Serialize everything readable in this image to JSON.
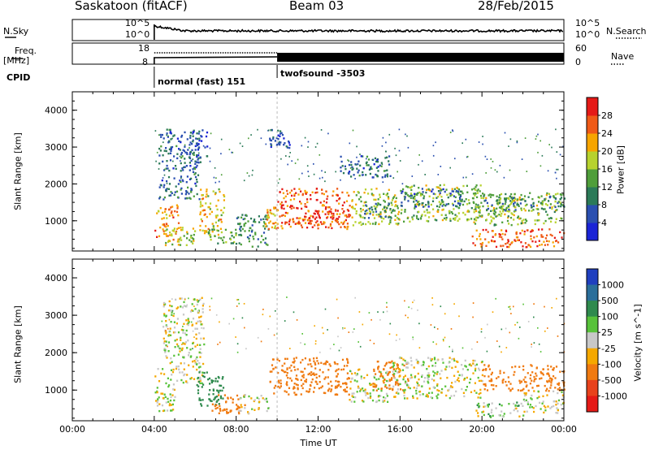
{
  "header": {
    "station": "Saskatoon (fitACF)",
    "beam": "Beam 03",
    "date": "28/Feb/2015"
  },
  "strip_labels": {
    "nsky": "N.Sky",
    "nsky_ticks": [
      "10^5",
      "10^0"
    ],
    "nsearch": "N.Search",
    "nsearch_ticks": [
      "10^5",
      "10^0"
    ],
    "freq": "Freq.",
    "freq_unit": "[MHz]",
    "freq_ticks": [
      "18",
      "8"
    ],
    "nave": "Nave",
    "nave_ticks": [
      "60",
      "0"
    ],
    "cpid": "CPID",
    "cpid_modes": [
      "normal (fast) 151",
      "twofsound -3503"
    ]
  },
  "chart_data": [
    {
      "type": "heatmap",
      "title": "",
      "ylabel": "Slant Range [km]",
      "xlabel": "",
      "x_range_hours": [
        0,
        24
      ],
      "ylim": [
        180,
        4500
      ],
      "yticks": [
        1000,
        2000,
        3000,
        4000
      ],
      "colorbar": {
        "label": "Power [dB]",
        "ticks": [
          4,
          8,
          12,
          16,
          20,
          24,
          28
        ],
        "range": [
          0,
          30
        ],
        "colors": [
          "#1a24d6",
          "#2a4fb0",
          "#2b7a58",
          "#4f9e3a",
          "#b7d22e",
          "#f7a500",
          "#ef5a17",
          "#e51a17"
        ]
      },
      "regions": [
        {
          "t0": 4.0,
          "t1": 5.2,
          "r0": 450,
          "r1": 1450,
          "v": 24
        },
        {
          "t0": 4.4,
          "t1": 6.0,
          "r0": 350,
          "r1": 900,
          "v": 18
        },
        {
          "t0": 4.2,
          "t1": 6.2,
          "r0": 1600,
          "r1": 3500,
          "v": 8
        },
        {
          "t0": 5.6,
          "t1": 6.6,
          "r0": 2600,
          "r1": 3500,
          "v": 6
        },
        {
          "t0": 6.2,
          "t1": 7.4,
          "r0": 600,
          "r1": 1900,
          "v": 20
        },
        {
          "t0": 6.6,
          "t1": 8.0,
          "r0": 400,
          "r1": 800,
          "v": 14
        },
        {
          "t0": 8.0,
          "t1": 9.6,
          "r0": 300,
          "r1": 1200,
          "v": 10
        },
        {
          "t0": 9.4,
          "t1": 10.0,
          "r0": 800,
          "r1": 1400,
          "v": 22
        },
        {
          "t0": 9.6,
          "t1": 10.6,
          "r0": 3000,
          "r1": 3500,
          "v": 6
        },
        {
          "t0": 10.0,
          "t1": 13.6,
          "r0": 800,
          "r1": 1900,
          "v": 26
        },
        {
          "t0": 11.0,
          "t1": 13.4,
          "r0": 900,
          "r1": 1300,
          "v": 28
        },
        {
          "t0": 13.6,
          "t1": 16.0,
          "r0": 900,
          "r1": 1900,
          "v": 18
        },
        {
          "t0": 14.2,
          "t1": 15.6,
          "r0": 1100,
          "r1": 1500,
          "v": 10
        },
        {
          "t0": 13.0,
          "t1": 15.5,
          "r0": 2200,
          "r1": 2800,
          "v": 8
        },
        {
          "t0": 16.0,
          "t1": 20.0,
          "r0": 1000,
          "r1": 2000,
          "v": 16
        },
        {
          "t0": 16.0,
          "t1": 19.0,
          "r0": 1400,
          "r1": 1900,
          "v": 8
        },
        {
          "t0": 19.5,
          "t1": 24.0,
          "r0": 300,
          "r1": 800,
          "v": 26
        },
        {
          "t0": 19.5,
          "t1": 24.0,
          "r0": 900,
          "r1": 1800,
          "v": 16
        },
        {
          "t0": 20.0,
          "t1": 24.0,
          "r0": 1300,
          "r1": 1700,
          "v": 10
        }
      ]
    },
    {
      "type": "heatmap",
      "title": "",
      "ylabel": "Slant Range [km]",
      "xlabel": "Time UT",
      "x_range_hours": [
        0,
        24
      ],
      "xticks": [
        "00:00",
        "04:00",
        "08:00",
        "12:00",
        "16:00",
        "20:00",
        "00:00"
      ],
      "ylim": [
        180,
        4500
      ],
      "yticks": [
        1000,
        2000,
        3000,
        4000
      ],
      "colorbar": {
        "label": "Velocity [m s^-1]",
        "ticks": [
          1000,
          500,
          100,
          25,
          -25,
          -100,
          -500,
          -1000
        ],
        "colors": [
          "#1f3fbf",
          "#2a6e9a",
          "#2f8a4e",
          "#58c23a",
          "#c8c8c8",
          "#f5a800",
          "#f07a10",
          "#e8421c",
          "#e51a17"
        ]
      },
      "regions": [
        {
          "t0": 4.0,
          "t1": 5.0,
          "r0": 450,
          "r1": 1600,
          "v": 0
        },
        {
          "t0": 4.4,
          "t1": 6.4,
          "r0": 1700,
          "r1": 3500,
          "v": 0
        },
        {
          "t0": 5.0,
          "t1": 6.4,
          "r0": 1200,
          "r1": 1700,
          "v": 0
        },
        {
          "t0": 6.0,
          "t1": 7.4,
          "r0": 600,
          "r1": 1500,
          "v": 200
        },
        {
          "t0": 6.8,
          "t1": 8.6,
          "r0": 400,
          "r1": 900,
          "v": -200
        },
        {
          "t0": 8.0,
          "t1": 9.6,
          "r0": 400,
          "r1": 900,
          "v": 0
        },
        {
          "t0": 9.6,
          "t1": 13.5,
          "r0": 900,
          "r1": 1900,
          "v": -200
        },
        {
          "t0": 13.5,
          "t1": 15.6,
          "r0": 700,
          "r1": 1600,
          "v": 0
        },
        {
          "t0": 14.6,
          "t1": 16.4,
          "r0": 1000,
          "r1": 1800,
          "v": -200
        },
        {
          "t0": 15.6,
          "t1": 20.0,
          "r0": 800,
          "r1": 1900,
          "v": 0
        },
        {
          "t0": 20.0,
          "t1": 24.0,
          "r0": 1000,
          "r1": 1700,
          "v": -200
        },
        {
          "t0": 22.0,
          "t1": 24.0,
          "r0": 400,
          "r1": 1000,
          "v": 0
        },
        {
          "t0": 19.5,
          "t1": 22.0,
          "r0": 300,
          "r1": 700,
          "v": 40
        }
      ]
    }
  ]
}
